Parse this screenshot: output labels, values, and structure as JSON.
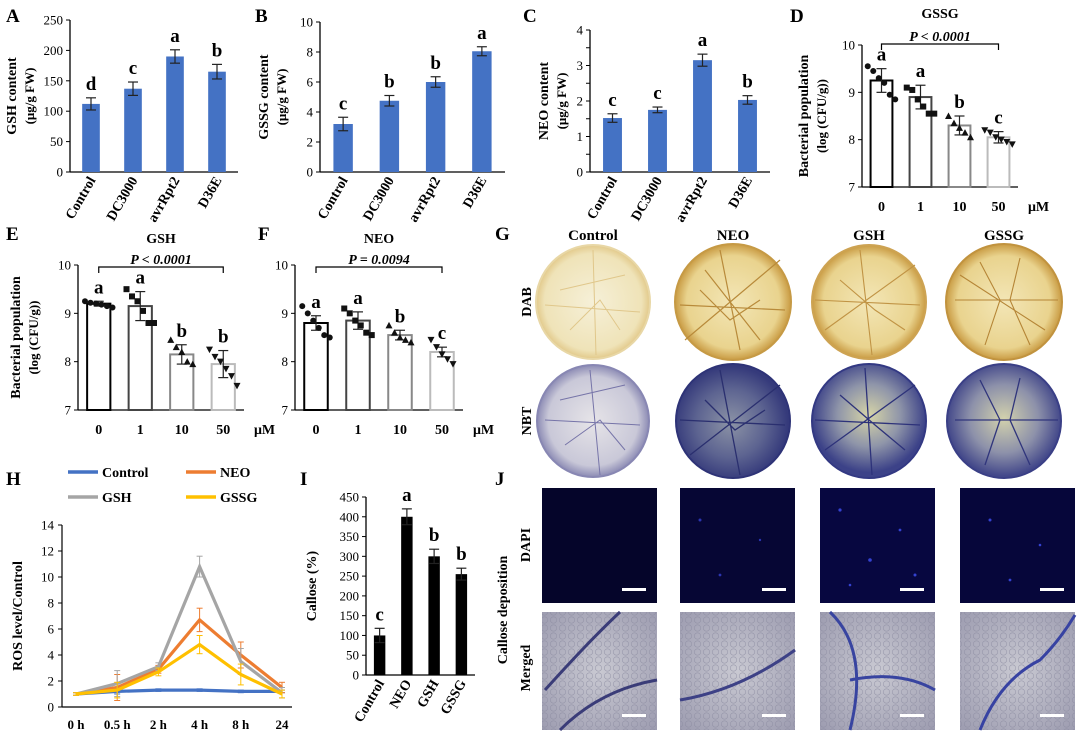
{
  "chart_data": [
    {
      "panel": "A",
      "type": "bar",
      "ylabel": "GSH content",
      "ylabel2": "(μg/g FW)",
      "categories": [
        "Control",
        "DC3000",
        "avrRpt2",
        "D36E"
      ],
      "values": [
        112,
        137,
        190,
        165
      ],
      "errors": [
        10,
        11,
        11,
        12
      ],
      "letters": [
        "d",
        "c",
        "a",
        "b"
      ],
      "ylim": [
        0,
        250
      ],
      "yticks": [
        0,
        50,
        100,
        150,
        200,
        250
      ],
      "color": "#4472C4"
    },
    {
      "panel": "B",
      "type": "bar",
      "ylabel": "GSSG content",
      "ylabel2": "(μg/g FW)",
      "categories": [
        "Control",
        "DC3000",
        "avrRpt2",
        "D36E"
      ],
      "values": [
        3.2,
        4.75,
        6.0,
        8.05
      ],
      "errors": [
        0.45,
        0.35,
        0.35,
        0.3
      ],
      "letters": [
        "c",
        "b",
        "b",
        "a"
      ],
      "ylim": [
        0,
        10
      ],
      "yticks": [
        0,
        2,
        4,
        6,
        8,
        10
      ],
      "color": "#4472C4"
    },
    {
      "panel": "C",
      "type": "bar",
      "ylabel": "NEO content",
      "ylabel2": "(μg/g FW)",
      "categories": [
        "Control",
        "DC3000",
        "avrRpt2",
        "D36E"
      ],
      "values": [
        1.52,
        1.75,
        3.15,
        2.03
      ],
      "errors": [
        0.12,
        0.08,
        0.17,
        0.12
      ],
      "letters": [
        "c",
        "c",
        "a",
        "b"
      ],
      "ylim": [
        0,
        4
      ],
      "yticks": [
        0,
        0.5,
        1,
        1.5,
        2,
        2.5,
        3,
        3.5,
        4
      ],
      "ytick_labels": [
        "0",
        "",
        "1",
        "",
        "2",
        "",
        "3",
        "",
        "4"
      ],
      "color": "#4472C4"
    },
    {
      "panel": "D",
      "type": "bar",
      "title": "GSSG",
      "pvalue": "P <  0.0001",
      "ylabel": "Bacterial population",
      "ylabel2": "(log (CFU/g))",
      "categories": [
        "0",
        "1",
        "10",
        "50"
      ],
      "unit": "μM",
      "values": [
        9.25,
        8.9,
        8.3,
        8.05
      ],
      "errors": [
        0.25,
        0.25,
        0.2,
        0.12
      ],
      "letters": [
        "a",
        "a",
        "b",
        "c"
      ],
      "ylim": [
        7,
        10
      ],
      "yticks": [
        7,
        8,
        9,
        10
      ],
      "points": [
        [
          9.55,
          9.45,
          9.3,
          9.2,
          8.95,
          8.85
        ],
        [
          9.1,
          9.05,
          8.85,
          8.7,
          8.55,
          8.55
        ],
        [
          8.5,
          8.35,
          8.25,
          8.15,
          8.05
        ],
        [
          8.2,
          8.15,
          8.05,
          8.0,
          7.95,
          7.9
        ]
      ],
      "bar_edges": [
        "#000000",
        "#444444",
        "#888888",
        "#bbbbbb"
      ]
    },
    {
      "panel": "E",
      "type": "bar",
      "title": "GSH",
      "pvalue": "P <  0.0001",
      "ylabel": "Bacterial population",
      "ylabel2": "(log (CFU/g))",
      "categories": [
        "0",
        "1",
        "10",
        "50"
      ],
      "unit": "μM",
      "values": [
        9.2,
        9.15,
        8.15,
        7.95
      ],
      "errors": [
        0.05,
        0.3,
        0.2,
        0.28
      ],
      "letters": [
        "a",
        "a",
        "b",
        "b"
      ],
      "ylim": [
        7,
        10
      ],
      "yticks": [
        7,
        8,
        9,
        10
      ],
      "points": [
        [
          9.25,
          9.22,
          9.2,
          9.18,
          9.15,
          9.12
        ],
        [
          9.5,
          9.35,
          9.25,
          9.05,
          8.8,
          8.8
        ],
        [
          8.45,
          8.3,
          8.2,
          8.0,
          7.95
        ],
        [
          8.25,
          8.1,
          8.0,
          7.85,
          7.7,
          7.5
        ]
      ],
      "bar_edges": [
        "#000000",
        "#444444",
        "#888888",
        "#bbbbbb"
      ]
    },
    {
      "panel": "F",
      "type": "bar",
      "title": "NEO",
      "pvalue": "P = 0.0094",
      "ylabel": "",
      "ylabel2": "",
      "categories": [
        "0",
        "1",
        "10",
        "50"
      ],
      "unit": "μM",
      "values": [
        8.8,
        8.85,
        8.55,
        8.2
      ],
      "errors": [
        0.15,
        0.18,
        0.1,
        0.1
      ],
      "letters": [
        "a",
        "a",
        "b",
        "c"
      ],
      "ylim": [
        7,
        10
      ],
      "yticks": [
        7,
        8,
        9,
        10
      ],
      "points": [
        [
          9.15,
          9.0,
          8.85,
          8.7,
          8.55,
          8.5
        ],
        [
          9.1,
          9.0,
          8.85,
          8.75,
          8.6,
          8.55
        ],
        [
          8.75,
          8.6,
          8.5,
          8.45,
          8.4
        ],
        [
          8.45,
          8.3,
          8.15,
          8.05,
          7.95
        ]
      ],
      "bar_edges": [
        "#000000",
        "#444444",
        "#888888",
        "#bbbbbb"
      ]
    },
    {
      "panel": "H",
      "type": "line",
      "ylabel": "ROS level/Control",
      "x": [
        "0 h",
        "0.5 h",
        "2 h",
        "4 h",
        "8 h",
        "24"
      ],
      "ylim": [
        0,
        14
      ],
      "yticks": [
        0,
        2,
        4,
        6,
        8,
        10,
        12,
        14
      ],
      "series": [
        {
          "name": "Control",
          "color": "#4472C4",
          "values": [
            1.0,
            1.2,
            1.3,
            1.3,
            1.2,
            1.2
          ],
          "errors": [
            0.1,
            0.2,
            0.1,
            0.1,
            0.1,
            0.1
          ]
        },
        {
          "name": "NEO",
          "color": "#ED7D31",
          "values": [
            1.0,
            1.5,
            2.9,
            6.7,
            4.0,
            1.5
          ],
          "errors": [
            0.1,
            1.0,
            0.3,
            0.9,
            1.0,
            0.4
          ]
        },
        {
          "name": "GSH",
          "color": "#A5A5A5",
          "values": [
            1.0,
            1.8,
            3.1,
            10.8,
            3.5,
            1.1
          ],
          "errors": [
            0.1,
            1.0,
            0.3,
            0.8,
            1.0,
            0.4
          ]
        },
        {
          "name": "GSSG",
          "color": "#FFC000",
          "values": [
            1.0,
            1.3,
            2.7,
            4.8,
            2.5,
            1.0
          ],
          "errors": [
            0.1,
            0.6,
            0.3,
            0.7,
            0.8,
            0.3
          ]
        }
      ]
    },
    {
      "panel": "I",
      "type": "bar",
      "ylabel": "Callose (%)",
      "categories": [
        "Control",
        "NEO",
        "GSH",
        "GSSG"
      ],
      "values": [
        100,
        400,
        300,
        255
      ],
      "errors": [
        18,
        20,
        18,
        15
      ],
      "letters": [
        "c",
        "a",
        "b",
        "b"
      ],
      "ylim": [
        0,
        450
      ],
      "yticks": [
        0,
        50,
        100,
        150,
        200,
        250,
        300,
        350,
        400,
        450
      ],
      "color": "#000000"
    }
  ],
  "panel_g": {
    "columns": [
      "Control",
      "NEO",
      "GSH",
      "GSSG"
    ],
    "rows": [
      "DAB",
      "NBT"
    ]
  },
  "panel_j": {
    "side_label": "Callose deposition",
    "rows": [
      "DAPI",
      "Merged"
    ]
  }
}
